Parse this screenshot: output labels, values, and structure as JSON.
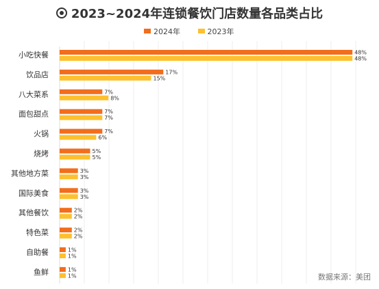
{
  "chart_data": {
    "type": "bar",
    "orientation": "horizontal",
    "title": "2023~2024年连锁餐饮门店数量各品类占比",
    "categories": [
      "小吃快餐",
      "饮品店",
      "八大菜系",
      "面包甜点",
      "火锅",
      "烧烤",
      "其他地方菜",
      "国际美食",
      "其他餐饮",
      "特色菜",
      "自助餐",
      "鱼鲜"
    ],
    "series": [
      {
        "name": "2024年",
        "color": "#f26d1c",
        "values": [
          48,
          17,
          7,
          7,
          7,
          5,
          3,
          3,
          2,
          2,
          1,
          1
        ],
        "labels": [
          "48%",
          "17%",
          "7%",
          "7%",
          "7%",
          "5%",
          "3%",
          "3%",
          "2%",
          "2%",
          "1%",
          "1%"
        ]
      },
      {
        "name": "2023年",
        "color": "#fdc02e",
        "values": [
          48,
          15,
          8,
          7,
          6,
          5,
          3,
          3,
          2,
          2,
          1,
          1
        ],
        "labels": [
          "48%",
          "15%",
          "8%",
          "7%",
          "6%",
          "5%",
          "3%",
          "3%",
          "2%",
          "2%",
          "1%",
          "1%"
        ]
      }
    ],
    "grid": true,
    "legend": "top",
    "source": "数据来源：美团"
  }
}
